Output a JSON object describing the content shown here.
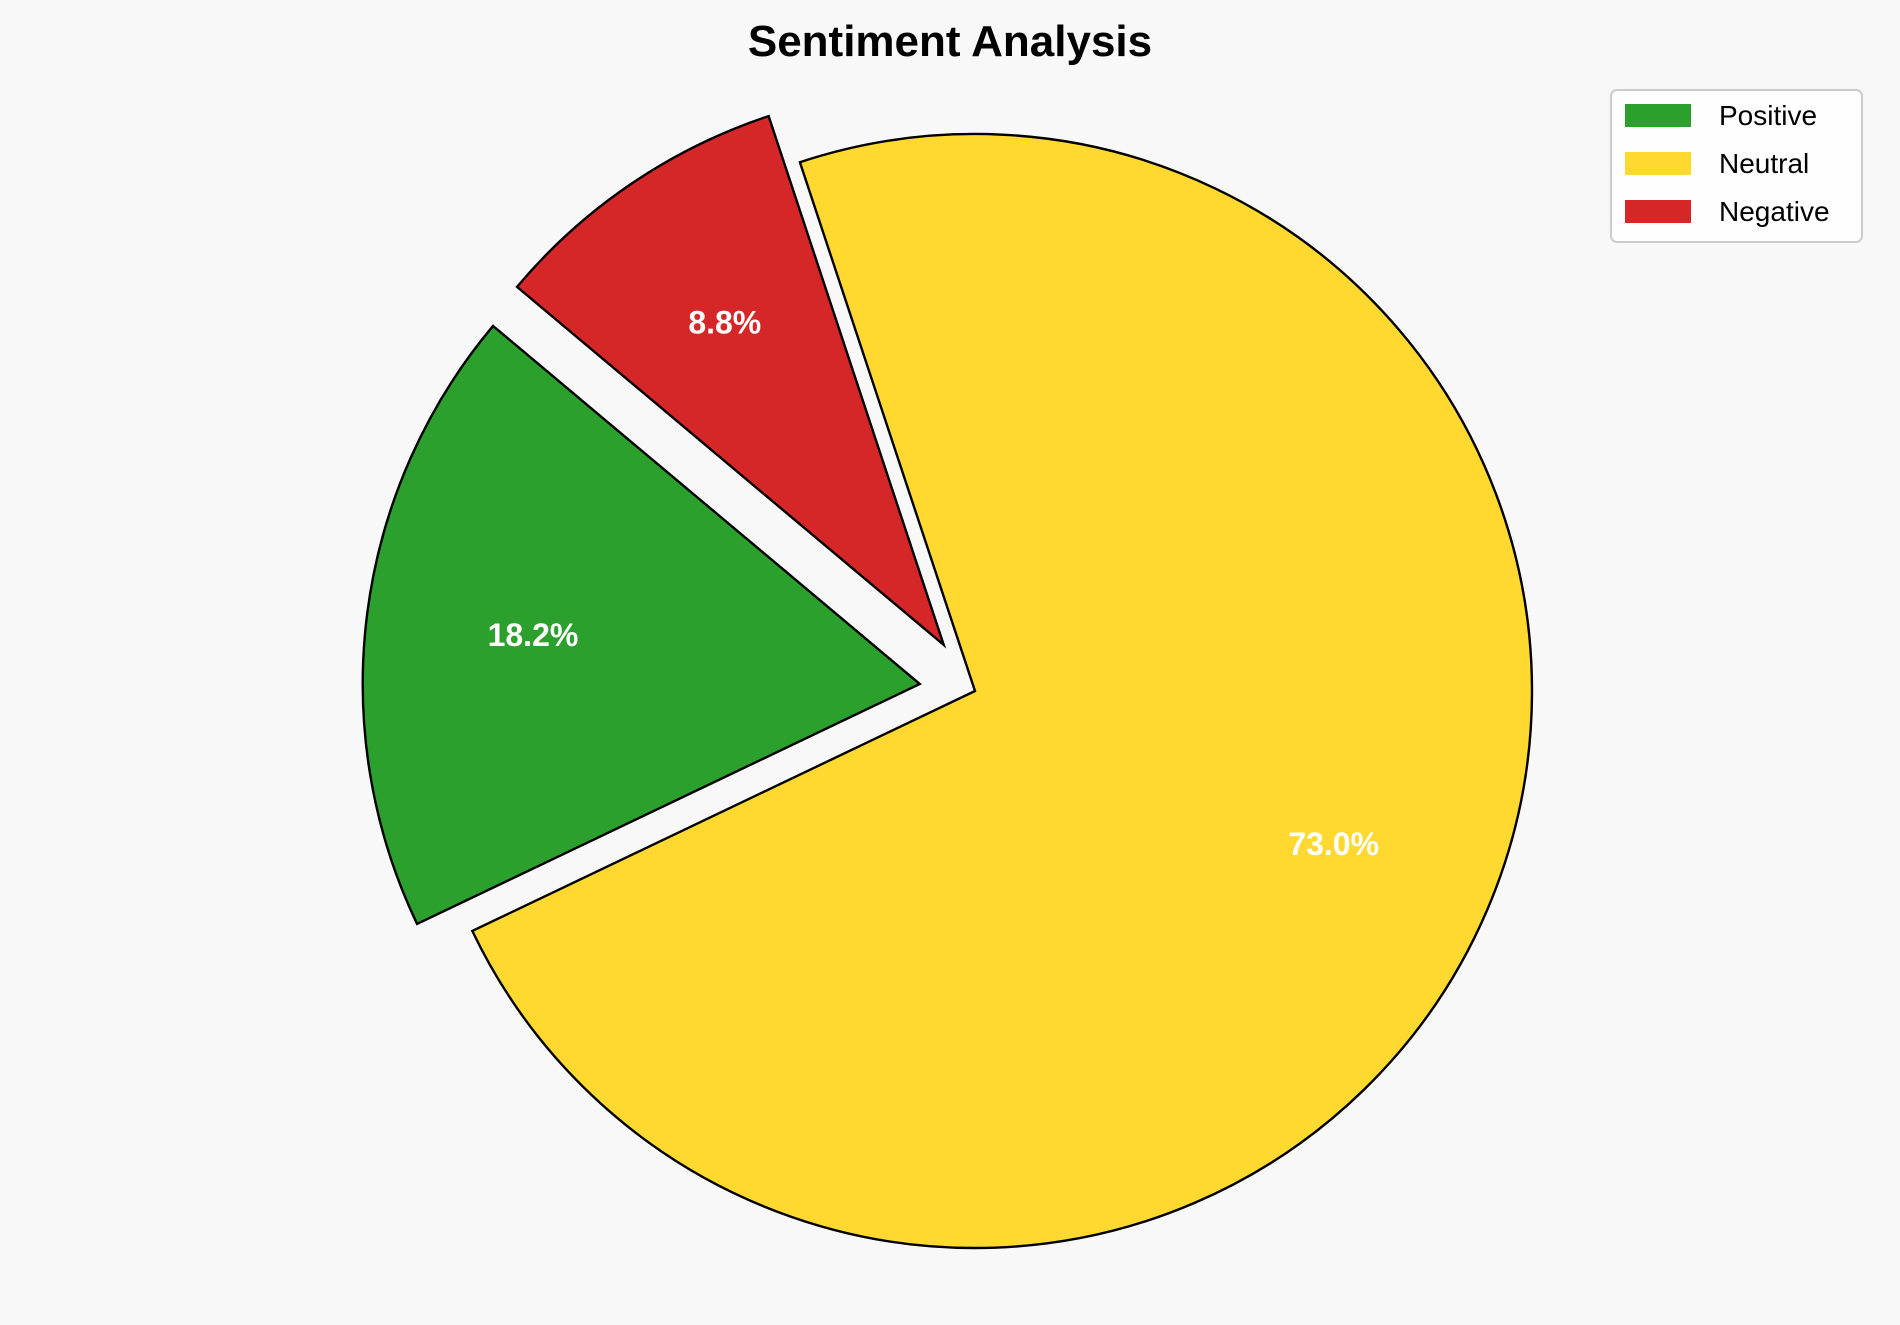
{
  "chart_data": {
    "type": "pie",
    "title": "Sentiment Analysis",
    "categories": [
      "Positive",
      "Neutral",
      "Negative"
    ],
    "values": [
      18.2,
      73.0,
      8.8
    ],
    "labels": [
      "18.2%",
      "73.0%",
      "8.8%"
    ],
    "colors": [
      "#2ca02c",
      "#ffd92f",
      "#d62728"
    ],
    "explode": [
      0.1,
      0,
      0.1
    ],
    "start_angle": 140,
    "direction": "counterclockwise",
    "legend_placement": "top-right",
    "edge_color": "#000000",
    "label_color": "#ffffff",
    "background": "#f8f8f8"
  }
}
